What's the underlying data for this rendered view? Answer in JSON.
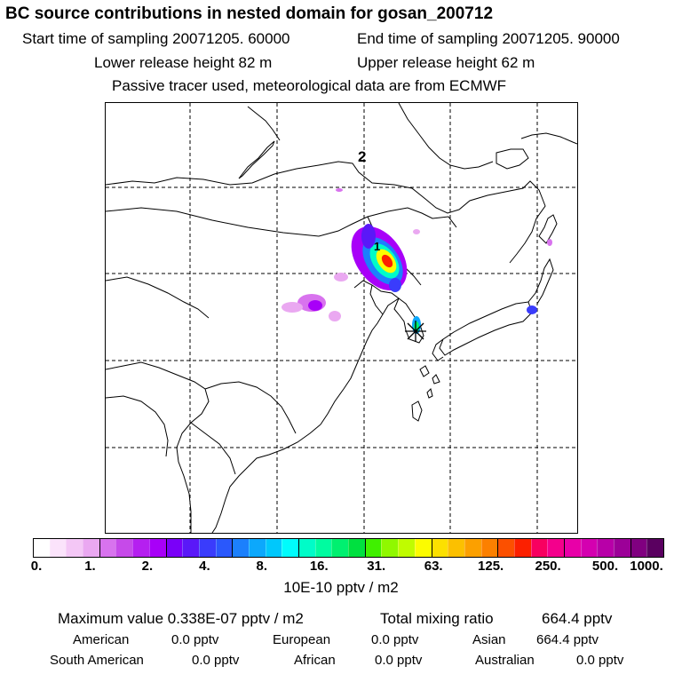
{
  "header": {
    "title": "BC  source contributions in nested domain for gosan_200712",
    "start_time": "Start time of sampling 20071205. 60000",
    "end_time": "End time of sampling 20071205. 90000",
    "lower_release": "Lower release height   82 m",
    "upper_release": "Upper release height   62 m",
    "tracer_note": "Passive tracer used, meteorological data are from ECMWF"
  },
  "map": {
    "labels": {
      "label_2": "2",
      "label_1": "1"
    },
    "receptor_marker": "receptor-star-icon"
  },
  "colorbar": {
    "colors": [
      "#ffffff",
      "#fbe3fb",
      "#f4c7f6",
      "#eaa8f1",
      "#d873ee",
      "#c64ae9",
      "#b51ff0",
      "#a800f8",
      "#7a00f8",
      "#5a18f8",
      "#3a3cfc",
      "#2a58fc",
      "#1c80fc",
      "#0ca8fc",
      "#00c8fc",
      "#00fcfc",
      "#00fcc8",
      "#00fca0",
      "#00f070",
      "#00e040",
      "#40f000",
      "#90f800",
      "#c0fc00",
      "#fcfc00",
      "#fce000",
      "#fcc000",
      "#fca000",
      "#fc8000",
      "#fc5000",
      "#fc2000",
      "#f80060",
      "#f4008c",
      "#e800a8",
      "#d400b0",
      "#b800a8",
      "#9c0098",
      "#800080",
      "#5a0060"
    ],
    "tick_labels": [
      "0.",
      "1.",
      "2.",
      "4.",
      "8.",
      "16.",
      "31.",
      "63.",
      "125.",
      "250.",
      "500.",
      "1000."
    ],
    "units": "10E-10 pptv / m2"
  },
  "stats": {
    "maximum": "Maximum value  0.338E-07 pptv / m2",
    "total": "Total mixing ratio",
    "total_value": "664.4 pptv",
    "regions": [
      {
        "name": "American",
        "value": "0.0 pptv"
      },
      {
        "name": "European",
        "value": "0.0 pptv"
      },
      {
        "name": "Asian",
        "value": "664.4 pptv"
      },
      {
        "name": "South American",
        "value": "0.0 pptv"
      },
      {
        "name": "African",
        "value": "0.0 pptv"
      },
      {
        "name": "Australian",
        "value": "0.0 pptv"
      }
    ]
  }
}
